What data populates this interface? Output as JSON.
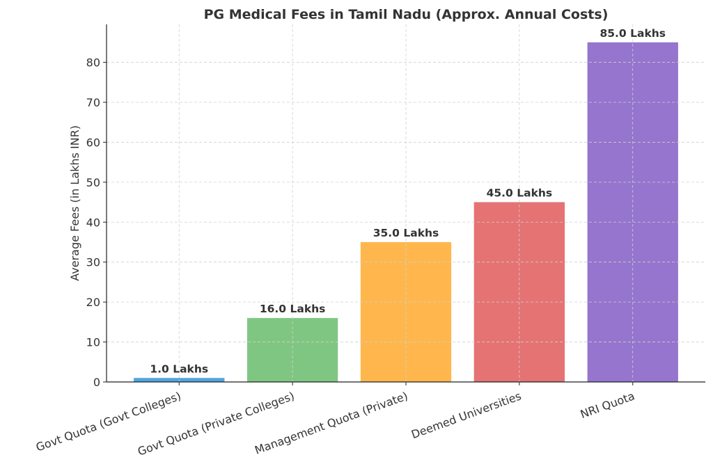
{
  "chart_data": {
    "type": "bar",
    "title": "PG Medical Fees in Tamil Nadu (Approx. Annual Costs)",
    "xlabel": "",
    "ylabel": "Average Fees (in Lakhs INR)",
    "categories": [
      "Govt Quota (Govt Colleges)",
      "Govt Quota (Private Colleges)",
      "Management Quota (Private)",
      "Deemed Universities",
      "NRI Quota"
    ],
    "values": [
      1.0,
      16.0,
      35.0,
      45.0,
      85.0
    ],
    "data_labels": [
      "1.0 Lakhs",
      "16.0 Lakhs",
      "35.0 Lakhs",
      "45.0 Lakhs",
      "85.0 Lakhs"
    ],
    "colors": [
      "#4ea5e0",
      "#80c683",
      "#ffb74d",
      "#e57373",
      "#9575cd"
    ],
    "ylim": [
      0,
      89.5
    ],
    "yticks": [
      0,
      10,
      20,
      30,
      40,
      50,
      60,
      70,
      80
    ],
    "grid": true,
    "legend": "none"
  }
}
